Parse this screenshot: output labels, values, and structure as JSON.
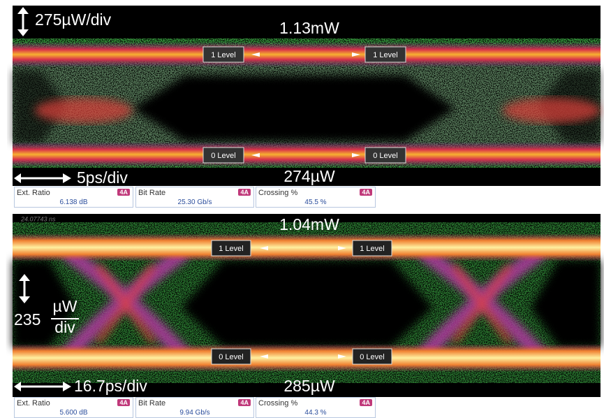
{
  "panels": [
    {
      "scale_vertical": "275µW/div",
      "top_power": "1.13mW",
      "bottom_power": "274µW",
      "scale_horizontal": "5ps/div",
      "level_labels": [
        "1 Level",
        "1 Level",
        "0 Level",
        "0 Level"
      ],
      "measurements": [
        {
          "label": "Ext. Ratio",
          "value": "6.138 dB",
          "badge": "4A"
        },
        {
          "label": "Bit Rate",
          "value": "25.30 Gb/s",
          "badge": "4A"
        },
        {
          "label": "Crossing %",
          "value": "45.5 %",
          "badge": "4A"
        }
      ]
    },
    {
      "timestamp": "24.07743 ns",
      "scale_vertical": {
        "number": "235",
        "numerator": "µW",
        "denominator": "div"
      },
      "top_power": "1.04mW",
      "bottom_power": "285µW",
      "scale_horizontal": "16.7ps/div",
      "level_labels": [
        "1 Level",
        "1 Level",
        "0 Level",
        "0 Level"
      ],
      "measurements": [
        {
          "label": "Ext. Ratio",
          "value": "5.600 dB",
          "badge": "4A"
        },
        {
          "label": "Bit Rate",
          "value": "9.94 Gb/s",
          "badge": "4A"
        },
        {
          "label": "Crossing %",
          "value": "44.3 %",
          "badge": "4A"
        }
      ]
    }
  ]
}
